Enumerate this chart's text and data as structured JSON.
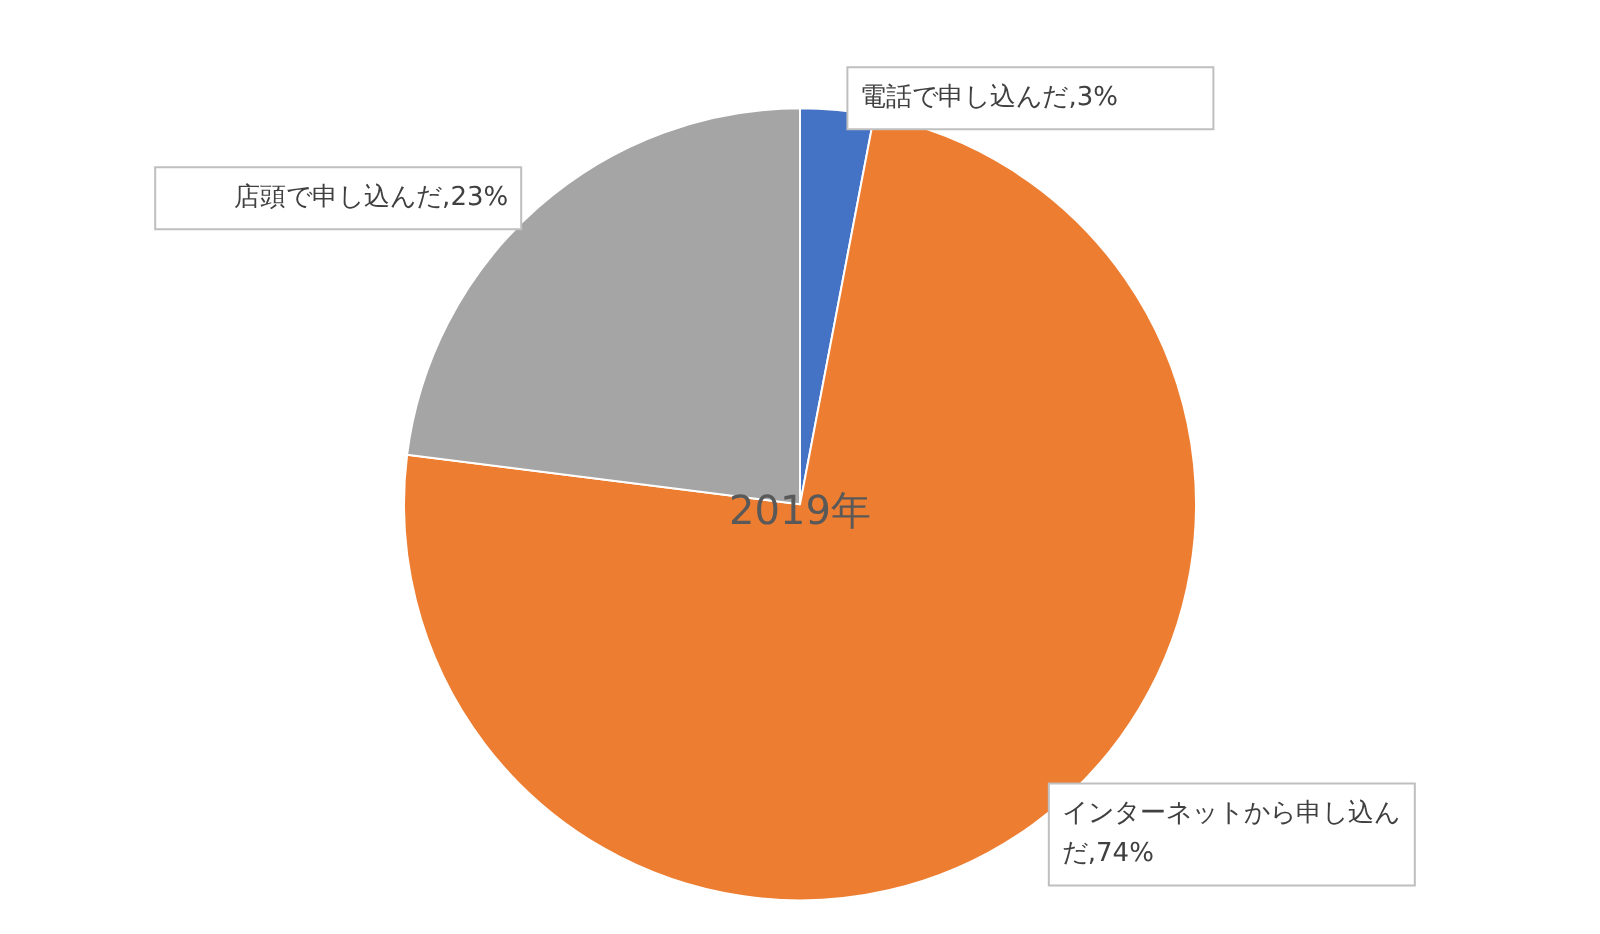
{
  "chart_data": {
    "type": "pie",
    "title": "2019年",
    "categories": [
      "電話で申し込んだ",
      "インターネットから申し込んだ",
      "店頭で申し込んだ"
    ],
    "values": [
      3,
      74,
      23
    ],
    "colors": [
      "#4472c4",
      "#ed7d31",
      "#a5a5a5"
    ],
    "value_labels": [
      ",3%",
      ",74%",
      ",23%"
    ]
  }
}
